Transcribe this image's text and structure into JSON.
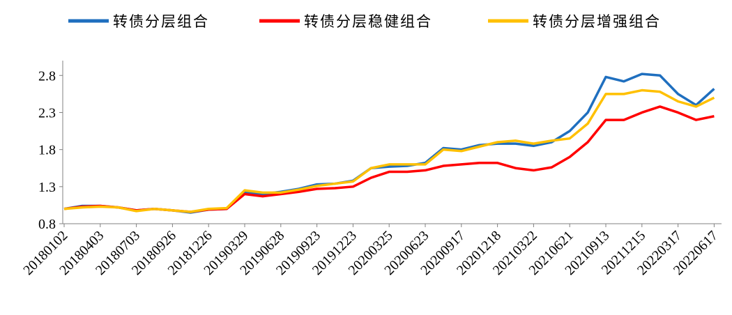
{
  "chart_data": {
    "type": "line",
    "categories": [
      "20180102",
      null,
      "20180403",
      null,
      "20180703",
      null,
      "20180926",
      null,
      "20181226",
      null,
      "20190329",
      null,
      "20190628",
      null,
      "20190923",
      null,
      "20191223",
      null,
      "20200325",
      null,
      "20200623",
      null,
      "20200917",
      null,
      "20201218",
      null,
      "20210322",
      null,
      "20210621",
      null,
      "20210913",
      null,
      "20211215",
      null,
      "20220317",
      null,
      "20220617"
    ],
    "series": [
      {
        "name": "转债分层组合",
        "color": "#1f6fbf",
        "values": [
          1.0,
          1.04,
          1.04,
          1.02,
          0.98,
          1.0,
          0.98,
          0.95,
          0.99,
          1.0,
          1.22,
          1.2,
          1.23,
          1.27,
          1.33,
          1.34,
          1.38,
          1.55,
          1.57,
          1.58,
          1.62,
          1.82,
          1.8,
          1.86,
          1.88,
          1.88,
          1.85,
          1.9,
          2.05,
          2.3,
          2.78,
          2.72,
          2.82,
          2.8,
          2.55,
          2.4,
          2.62
        ]
      },
      {
        "name": "转债分层稳健组合",
        "color": "#ff0000",
        "values": [
          1.0,
          1.03,
          1.04,
          1.02,
          0.98,
          1.0,
          0.98,
          0.96,
          0.99,
          1.0,
          1.2,
          1.17,
          1.2,
          1.23,
          1.27,
          1.28,
          1.3,
          1.42,
          1.5,
          1.5,
          1.52,
          1.58,
          1.6,
          1.62,
          1.62,
          1.55,
          1.52,
          1.56,
          1.7,
          1.9,
          2.2,
          2.2,
          2.3,
          2.38,
          2.3,
          2.2,
          2.25
        ]
      },
      {
        "name": "转债分层增强组合",
        "color": "#ffc000",
        "values": [
          1.0,
          1.02,
          1.03,
          1.02,
          0.97,
          1.0,
          0.98,
          0.96,
          1.0,
          1.01,
          1.25,
          1.22,
          1.22,
          1.26,
          1.31,
          1.34,
          1.37,
          1.55,
          1.6,
          1.6,
          1.6,
          1.8,
          1.78,
          1.84,
          1.9,
          1.92,
          1.88,
          1.92,
          1.95,
          2.15,
          2.55,
          2.55,
          2.6,
          2.58,
          2.45,
          2.38,
          2.5
        ]
      }
    ],
    "ylim": [
      0.8,
      3.0
    ],
    "yticks": [
      0.8,
      1.3,
      1.8,
      2.3,
      2.8
    ]
  }
}
